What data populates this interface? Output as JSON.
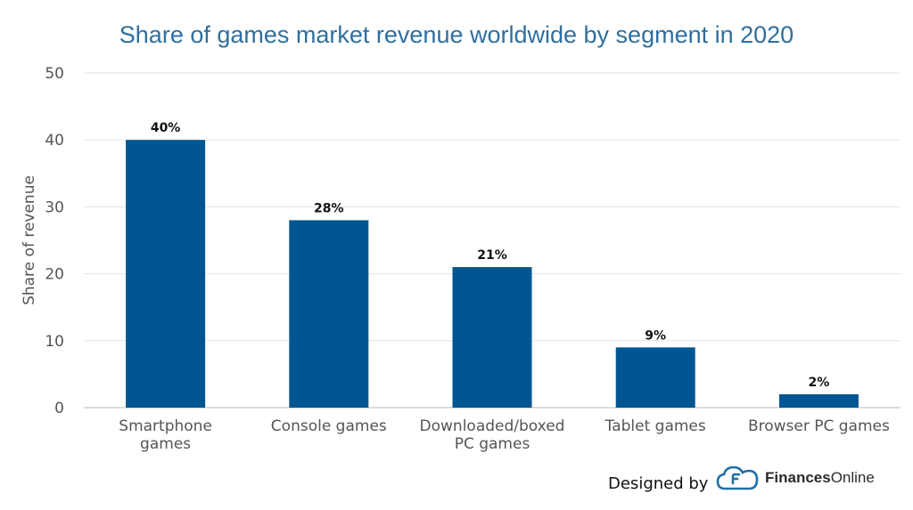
{
  "chart_data": {
    "type": "bar",
    "title": "Share of games market revenue worldwide by segment in 2020",
    "ylabel": "Share of revenue",
    "xlabel": "",
    "ylim": [
      0,
      50
    ],
    "yticks": [
      0,
      10,
      20,
      30,
      40,
      50
    ],
    "grid": true,
    "categories": [
      [
        "Smartphone",
        "games"
      ],
      [
        "Console games"
      ],
      [
        "Downloaded/boxed",
        "PC games"
      ],
      [
        "Tablet games"
      ],
      [
        "Browser PC games"
      ]
    ],
    "values": [
      40,
      28,
      21,
      9,
      2
    ],
    "data_labels": [
      "40%",
      "28%",
      "21%",
      "9%",
      "2%"
    ],
    "bar_color": "#005592"
  },
  "credit": {
    "prefix": "Designed by",
    "brand_bold": "Finances",
    "brand_regular": "Online",
    "logo_icon": "finances-online-cloud-logo-icon",
    "logo_color": "#1f6fa8"
  }
}
